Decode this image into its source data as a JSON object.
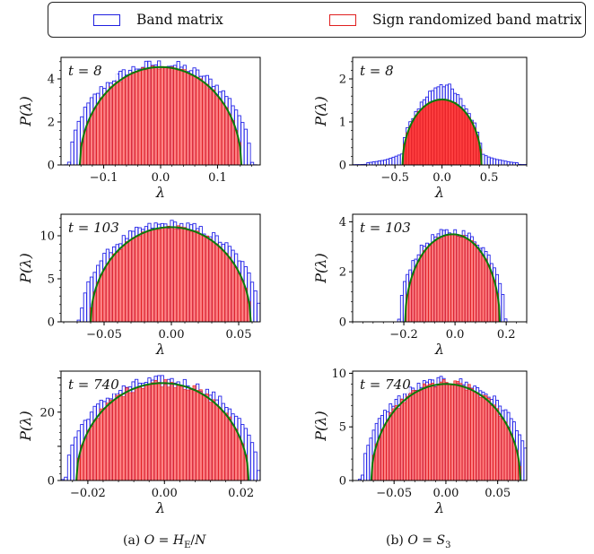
{
  "legend": {
    "band": {
      "label": "Band matrix",
      "color": "#1f1fe0"
    },
    "sign": {
      "label": "Sign randomized band matrix",
      "color": "#e01f1f"
    }
  },
  "colors": {
    "band_edge": "#2424e8",
    "sign_edge": "#e82424",
    "sign_fill": "#ff1e1e",
    "curve": "#0a7a0a"
  },
  "captions": {
    "a": "(a) O = H_E/N",
    "b": "(b) O = S_3"
  },
  "chart_data": [
    {
      "type": "histogram",
      "panel": "a",
      "label": "t = 8",
      "xlabel": "λ",
      "ylabel": "P(λ)",
      "xlim": [
        -0.175,
        0.175
      ],
      "ylim": [
        0,
        5.0
      ],
      "xticks": [
        -0.1,
        0.0,
        0.1
      ],
      "xticklabels": [
        "−0.1",
        "0.0",
        "0.1"
      ],
      "yticks": [
        0,
        2,
        4
      ],
      "yticklabels": [
        "0",
        "2",
        "4"
      ],
      "semicircle": {
        "radius": 0.142,
        "peak": 4.55
      },
      "band_shape": "broad",
      "sign_shape": "semicircle"
    },
    {
      "type": "histogram",
      "panel": "b",
      "label": "t = 8",
      "xlabel": "λ",
      "ylabel": "P(λ)",
      "xlim": [
        -0.95,
        0.9
      ],
      "ylim": [
        0,
        2.5
      ],
      "xticks": [
        -0.5,
        0.0,
        0.5
      ],
      "xticklabels": [
        "−0.5",
        "0.0",
        "0.5"
      ],
      "yticks": [
        0,
        1,
        2
      ],
      "yticklabels": [
        "0",
        "1",
        "2"
      ],
      "semicircle": {
        "radius": 0.42,
        "peak": 1.52
      },
      "band_shape": "peaked",
      "sign_shape": "semicircle"
    },
    {
      "type": "histogram",
      "panel": "a",
      "label": "t = 103",
      "xlabel": "λ",
      "ylabel": "P(λ)",
      "xlim": [
        -0.082,
        0.066
      ],
      "ylim": [
        0,
        12.5
      ],
      "xticks": [
        -0.05,
        0.0,
        0.05
      ],
      "xticklabels": [
        "−0.05",
        "0.00",
        "0.05"
      ],
      "yticks": [
        0,
        5,
        10
      ],
      "yticklabels": [
        "0",
        "5",
        "10"
      ],
      "semicircle": {
        "center": -0.0005,
        "radius": 0.0595,
        "peak": 11.0
      },
      "band_shape": "broad",
      "sign_shape": "semicircle"
    },
    {
      "type": "histogram",
      "panel": "b",
      "label": "t = 103",
      "xlabel": "λ",
      "ylabel": "P(λ)",
      "xlim": [
        -0.4,
        0.28
      ],
      "ylim": [
        0,
        4.3
      ],
      "xticks": [
        -0.2,
        0.0,
        0.2
      ],
      "xticklabels": [
        "−0.2",
        "0.0",
        "0.2"
      ],
      "yticks": [
        0,
        2,
        4
      ],
      "yticklabels": [
        "0",
        "2",
        "4"
      ],
      "semicircle": {
        "center": -0.01,
        "radius": 0.185,
        "peak": 3.5
      },
      "band_shape": "broad",
      "sign_shape": "semicircle"
    },
    {
      "type": "histogram",
      "panel": "a",
      "label": "t = 740",
      "xlabel": "λ",
      "ylabel": "P(λ)",
      "xlim": [
        -0.027,
        0.025
      ],
      "ylim": [
        0,
        32
      ],
      "xticks": [
        -0.02,
        0.0,
        0.02
      ],
      "xticklabels": [
        "−0.02",
        "0.00",
        "0.02"
      ],
      "yticks": [
        0,
        10,
        20,
        30
      ],
      "yticklabels": [
        "0",
        "",
        "20",
        ""
      ],
      "semicircle": {
        "center": -0.0005,
        "radius": 0.0225,
        "peak": 28.5
      },
      "band_shape": "broad",
      "sign_shape": "semicircle_noisy"
    },
    {
      "type": "histogram",
      "panel": "b",
      "label": "t = 740",
      "xlabel": "λ",
      "ylabel": "P(λ)",
      "xlim": [
        -0.09,
        0.078
      ],
      "ylim": [
        0,
        10.2
      ],
      "xticks": [
        -0.05,
        0.0,
        0.05
      ],
      "xticklabels": [
        "−0.05",
        "0.00",
        "0.05"
      ],
      "yticks": [
        0,
        5,
        10
      ],
      "yticklabels": [
        "0",
        "5",
        "10"
      ],
      "semicircle": {
        "radius": 0.072,
        "peak": 9.0
      },
      "band_shape": "broad",
      "sign_shape": "semicircle_noisy"
    }
  ]
}
